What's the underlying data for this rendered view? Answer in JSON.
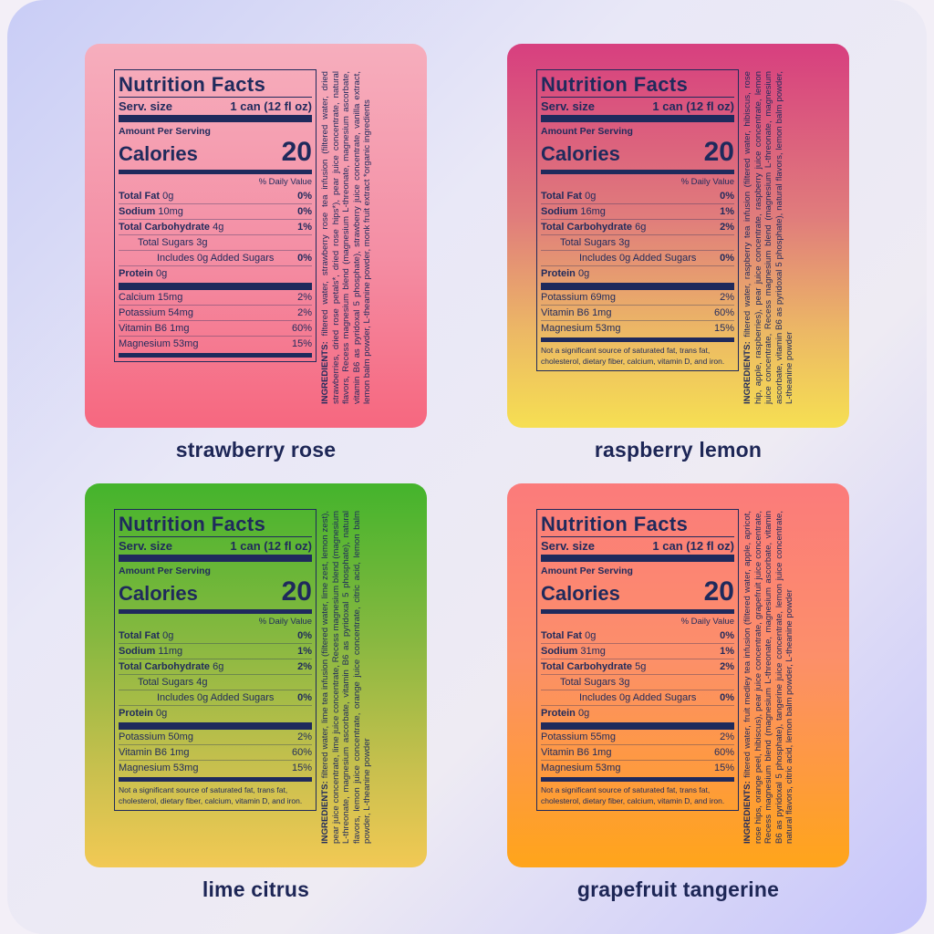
{
  "panels": [
    {
      "name": "strawberry rose",
      "label": {
        "title": "Nutrition Facts",
        "serving_label": "Serv. size",
        "serving_size": "1 can (12 fl oz)",
        "amount_per_serving": "Amount Per Serving",
        "calories_label": "Calories",
        "calories": "20",
        "daily_value_header": "% Daily Value",
        "rows": [
          {
            "name": "Total Fat",
            "amount": "0g",
            "dv": "0%"
          },
          {
            "name": "Sodium",
            "amount": "10mg",
            "dv": "0%"
          },
          {
            "name": "Total Carbohydrate",
            "amount": "4g",
            "dv": "1%",
            "sub": [
              {
                "name": "Total Sugars",
                "amount": "3g",
                "sub": [
                  {
                    "name": "Includes 0g Added Sugars",
                    "dv": "0%"
                  }
                ]
              }
            ]
          },
          {
            "name": "Protein",
            "amount": "0g"
          }
        ],
        "minerals": [
          {
            "name": "Calcium",
            "amount": "15mg",
            "dv": "2%"
          },
          {
            "name": "Potassium",
            "amount": "54mg",
            "dv": "2%"
          },
          {
            "name": "Vitamin B6",
            "amount": "1mg",
            "dv": "60%"
          },
          {
            "name": "Magnesium",
            "amount": "53mg",
            "dv": "15%"
          }
        ]
      },
      "ingredients_label": "INGREDIENTS:",
      "ingredients": "filtered water, strawberry rose tea infusion (filtered water, dried strawberries, dried rose petals*, dried rose hips*), pear juice concentrate, natural flavors, Recess magnesium blend (magnesium L-threonate, magnesium ascorbate, vitamin B6 as pyridoxal 5 phosphate), strawberry juice concentrate, vanilla extract, lemon balm powder, L-theanine powder, monk fruit extract *organic ingredients"
    },
    {
      "name": "raspberry lemon",
      "label": {
        "title": "Nutrition Facts",
        "serving_label": "Serv. size",
        "serving_size": "1 can (12 fl oz)",
        "amount_per_serving": "Amount Per Serving",
        "calories_label": "Calories",
        "calories": "20",
        "daily_value_header": "% Daily Value",
        "rows": [
          {
            "name": "Total Fat",
            "amount": "0g",
            "dv": "0%"
          },
          {
            "name": "Sodium",
            "amount": "16mg",
            "dv": "1%"
          },
          {
            "name": "Total Carbohydrate",
            "amount": "6g",
            "dv": "2%",
            "sub": [
              {
                "name": "Total Sugars",
                "amount": "3g",
                "sub": [
                  {
                    "name": "Includes 0g Added Sugars",
                    "dv": "0%"
                  }
                ]
              }
            ]
          },
          {
            "name": "Protein",
            "amount": "0g"
          }
        ],
        "minerals": [
          {
            "name": "Potassium",
            "amount": "69mg",
            "dv": "2%"
          },
          {
            "name": "Vitamin B6",
            "amount": "1mg",
            "dv": "60%"
          },
          {
            "name": "Magnesium",
            "amount": "53mg",
            "dv": "15%"
          }
        ],
        "footnote": "Not a significant source of saturated fat, trans fat, cholesterol, dietary fiber, calcium, vitamin D, and iron."
      },
      "ingredients_label": "INGREDIENTS:",
      "ingredients": "filtered water, raspberry tea infusion (filtered water, hibiscus, rose hip, apple, raspberries), pear juice concentrate, raspberry juice concentrate, lemon juice concentrate, Recess magnesium blend (magnesium L-threonate, magnesium ascorbate, vitamin B6 as pyridoxal 5 phosphate), natural flavors, lemon balm powder, L-theanine powder"
    },
    {
      "name": "lime citrus",
      "label": {
        "title": "Nutrition Facts",
        "serving_label": "Serv. size",
        "serving_size": "1 can (12 fl oz)",
        "amount_per_serving": "Amount Per Serving",
        "calories_label": "Calories",
        "calories": "20",
        "daily_value_header": "% Daily Value",
        "rows": [
          {
            "name": "Total Fat",
            "amount": "0g",
            "dv": "0%"
          },
          {
            "name": "Sodium",
            "amount": "11mg",
            "dv": "1%"
          },
          {
            "name": "Total Carbohydrate",
            "amount": "6g",
            "dv": "2%",
            "sub": [
              {
                "name": "Total Sugars",
                "amount": "4g",
                "sub": [
                  {
                    "name": "Includes 0g Added Sugars",
                    "dv": "0%"
                  }
                ]
              }
            ]
          },
          {
            "name": "Protein",
            "amount": "0g"
          }
        ],
        "minerals": [
          {
            "name": "Potassium",
            "amount": "50mg",
            "dv": "2%"
          },
          {
            "name": "Vitamin B6",
            "amount": "1mg",
            "dv": "60%"
          },
          {
            "name": "Magnesium",
            "amount": "53mg",
            "dv": "15%"
          }
        ],
        "footnote": "Not a significant source of saturated fat, trans fat, cholesterol, dietary fiber, calcium, vitamin D, and iron."
      },
      "ingredients_label": "INGREDIENTS:",
      "ingredients": "filtered water, lime tea infusion (filtered water, lime zest, lemon zest), pear juice concentrate, lime juice concentrate, Recess magnesium blend (magnesium L-threonate, magnesium ascorbate, vitamin B6 as pyridoxal 5 phosphate), natural flavors, lemon juice concentrate, orange juice concentrate, citric acid, lemon balm powder, L-theanine powder"
    },
    {
      "name": "grapefruit tangerine",
      "label": {
        "title": "Nutrition Facts",
        "serving_label": "Serv. size",
        "serving_size": "1 can (12 fl oz)",
        "amount_per_serving": "Amount Per Serving",
        "calories_label": "Calories",
        "calories": "20",
        "daily_value_header": "% Daily Value",
        "rows": [
          {
            "name": "Total Fat",
            "amount": "0g",
            "dv": "0%"
          },
          {
            "name": "Sodium",
            "amount": "31mg",
            "dv": "1%"
          },
          {
            "name": "Total Carbohydrate",
            "amount": "5g",
            "dv": "2%",
            "sub": [
              {
                "name": "Total Sugars",
                "amount": "3g",
                "sub": [
                  {
                    "name": "Includes 0g Added Sugars",
                    "dv": "0%"
                  }
                ]
              }
            ]
          },
          {
            "name": "Protein",
            "amount": "0g"
          }
        ],
        "minerals": [
          {
            "name": "Potassium",
            "amount": "55mg",
            "dv": "2%"
          },
          {
            "name": "Vitamin B6",
            "amount": "1mg",
            "dv": "60%"
          },
          {
            "name": "Magnesium",
            "amount": "53mg",
            "dv": "15%"
          }
        ],
        "footnote": "Not a significant source of saturated fat, trans fat, cholesterol, dietary fiber, calcium, vitamin D, and iron."
      },
      "ingredients_label": "INGREDIENTS:",
      "ingredients": "filtered water, fruit medley tea infusion (filtered water, apple, apricot, rose hips, orange peel, hibiscus), pear juice concentrate, grapefruit juice concentrate, Recess magnesium blend (magnesium L-threonate, magnesium ascorbate, vitamin B6 as pyridoxal 5 phosphate), tangerine juice concentrate, lemon juice concentrate, natural flavors, citric acid, lemon balm powder, L-theanine powder"
    }
  ]
}
